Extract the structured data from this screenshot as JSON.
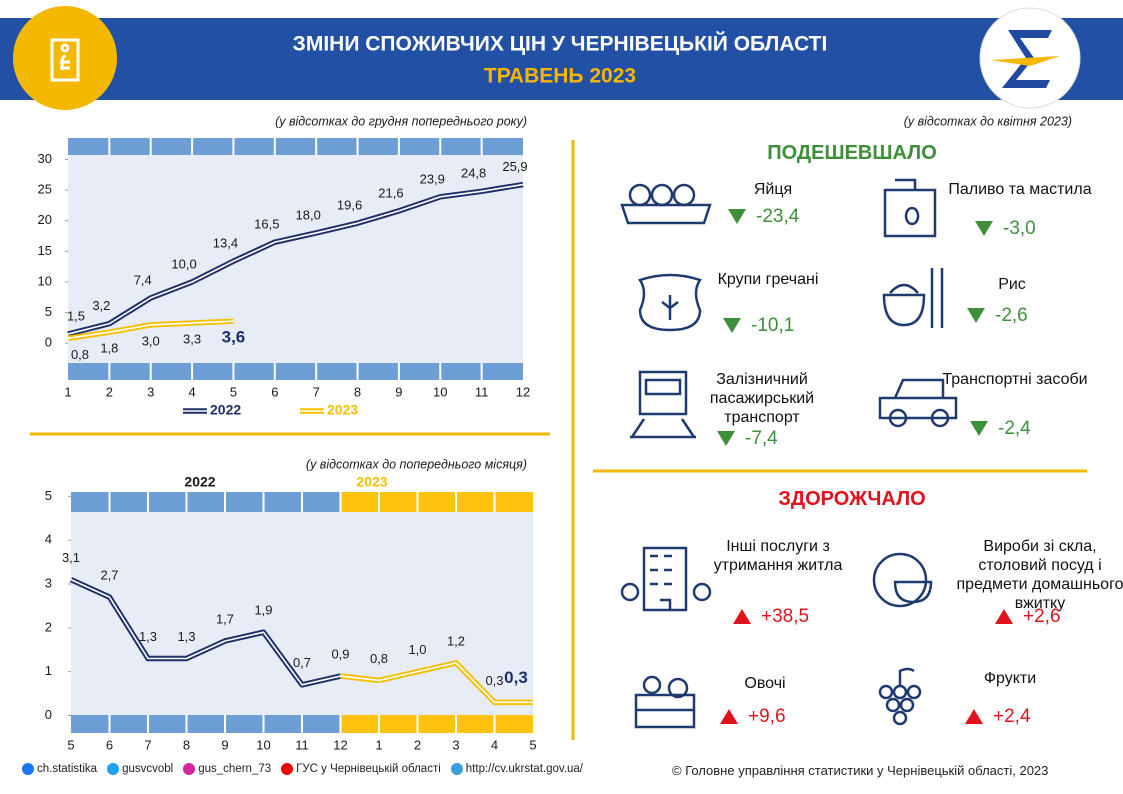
{
  "header": {
    "title": "ЗМІНИ СПОЖИВЧИХ ЦІН У ЧЕРНІВЕЦЬКІЙ ОБЛАСТІ",
    "subtitle": "ТРАВЕНЬ 2023"
  },
  "chart_data": [
    {
      "type": "line",
      "note": "(у відсотках до грудня попереднього року)",
      "x": [
        1,
        2,
        3,
        4,
        5,
        6,
        7,
        8,
        9,
        10,
        11,
        12
      ],
      "xlim": [
        1,
        12
      ],
      "xticks": [
        1,
        2,
        3,
        4,
        5,
        6,
        7,
        8,
        9,
        10,
        11,
        12
      ],
      "ylim": [
        -6,
        33.5
      ],
      "yticks": [
        0,
        5,
        10,
        15,
        20,
        25,
        30
      ],
      "series": [
        {
          "name": "2022",
          "color": "#1f2f6b",
          "values": [
            1.5,
            3.2,
            7.4,
            10.0,
            13.4,
            16.5,
            18.0,
            19.6,
            21.6,
            23.9,
            24.8,
            25.9
          ],
          "value_labels": [
            "1,5",
            "3,2",
            "7,4",
            "10,0",
            "13,4",
            "16,5",
            "18,0",
            "19,6",
            "21,6",
            "23,9",
            "24,8",
            "25,9"
          ]
        },
        {
          "name": "2023",
          "color": "#f5c000",
          "values": [
            0.8,
            1.8,
            3.0,
            3.3,
            3.6,
            null,
            null,
            null,
            null,
            null,
            null,
            null
          ],
          "value_labels": [
            "0,8",
            "1,8",
            "3,0",
            "3,3",
            "3,6",
            null,
            null,
            null,
            null,
            null,
            null,
            null
          ]
        }
      ]
    },
    {
      "type": "line",
      "note": "(у відсотках до попереднього місяця)",
      "categories": [
        "5",
        "6",
        "7",
        "8",
        "9",
        "10",
        "11",
        "12",
        "1",
        "2",
        "3",
        "4",
        "5"
      ],
      "ylim": [
        -0.4,
        5.1
      ],
      "yticks": [
        0,
        1,
        2,
        3,
        4,
        5
      ],
      "series": [
        {
          "name": "2022",
          "color": "#1f2f6b",
          "values": [
            3.1,
            2.7,
            1.3,
            1.3,
            1.7,
            1.9,
            0.7,
            0.9,
            null,
            null,
            null,
            null,
            null
          ],
          "value_labels": [
            "3,1",
            "2,7",
            "1,3",
            "1,3",
            "1,7",
            "1,9",
            "0,7",
            "0,9",
            null,
            null,
            null,
            null,
            null
          ]
        },
        {
          "name": "2023",
          "color": "#f5c000",
          "values": [
            null,
            null,
            null,
            null,
            null,
            null,
            null,
            null,
            0.8,
            1.0,
            1.2,
            0.3,
            0.3
          ],
          "value_labels": [
            null,
            null,
            null,
            null,
            null,
            null,
            null,
            null,
            "0,8",
            "1,0",
            "1,2",
            "0,3",
            "0,3"
          ]
        }
      ]
    }
  ],
  "comparison": {
    "note": "(у відсотках до квітня 2023)",
    "cheaper": {
      "title": "ПОДЕШЕВШАЛО",
      "items": [
        {
          "name": "Яйця",
          "change": "-23,4"
        },
        {
          "name": "Паливо та мастила",
          "change": "-3,0"
        },
        {
          "name": "Крупи гречані",
          "change": "-10,1"
        },
        {
          "name": "Рис",
          "change": "-2,6"
        },
        {
          "name": "Залізничний пасажирський транспорт",
          "change": "-7,4"
        },
        {
          "name": "Транспортні засоби",
          "change": "-2,4"
        }
      ]
    },
    "pricier": {
      "title": "ЗДОРОЖЧАЛО",
      "items": [
        {
          "name": "Інші послуги з утримання житла",
          "change": "+38,5"
        },
        {
          "name": "Вироби зі скла, столовий посуд і предмети домашнього вжитку",
          "change": "+2,6"
        },
        {
          "name": "Овочі",
          "change": "+9,6"
        },
        {
          "name": "Фрукти",
          "change": "+2,4"
        }
      ]
    }
  },
  "footer": {
    "links": [
      "ch.statistika",
      "gusvcvobl",
      "gus_chern_73",
      "ГУС у Чернівецькій області",
      "http://cv.ukrstat.gov.ua/"
    ],
    "copyright": "© Головне управління статистики у Чернівецькій області, 2023"
  }
}
